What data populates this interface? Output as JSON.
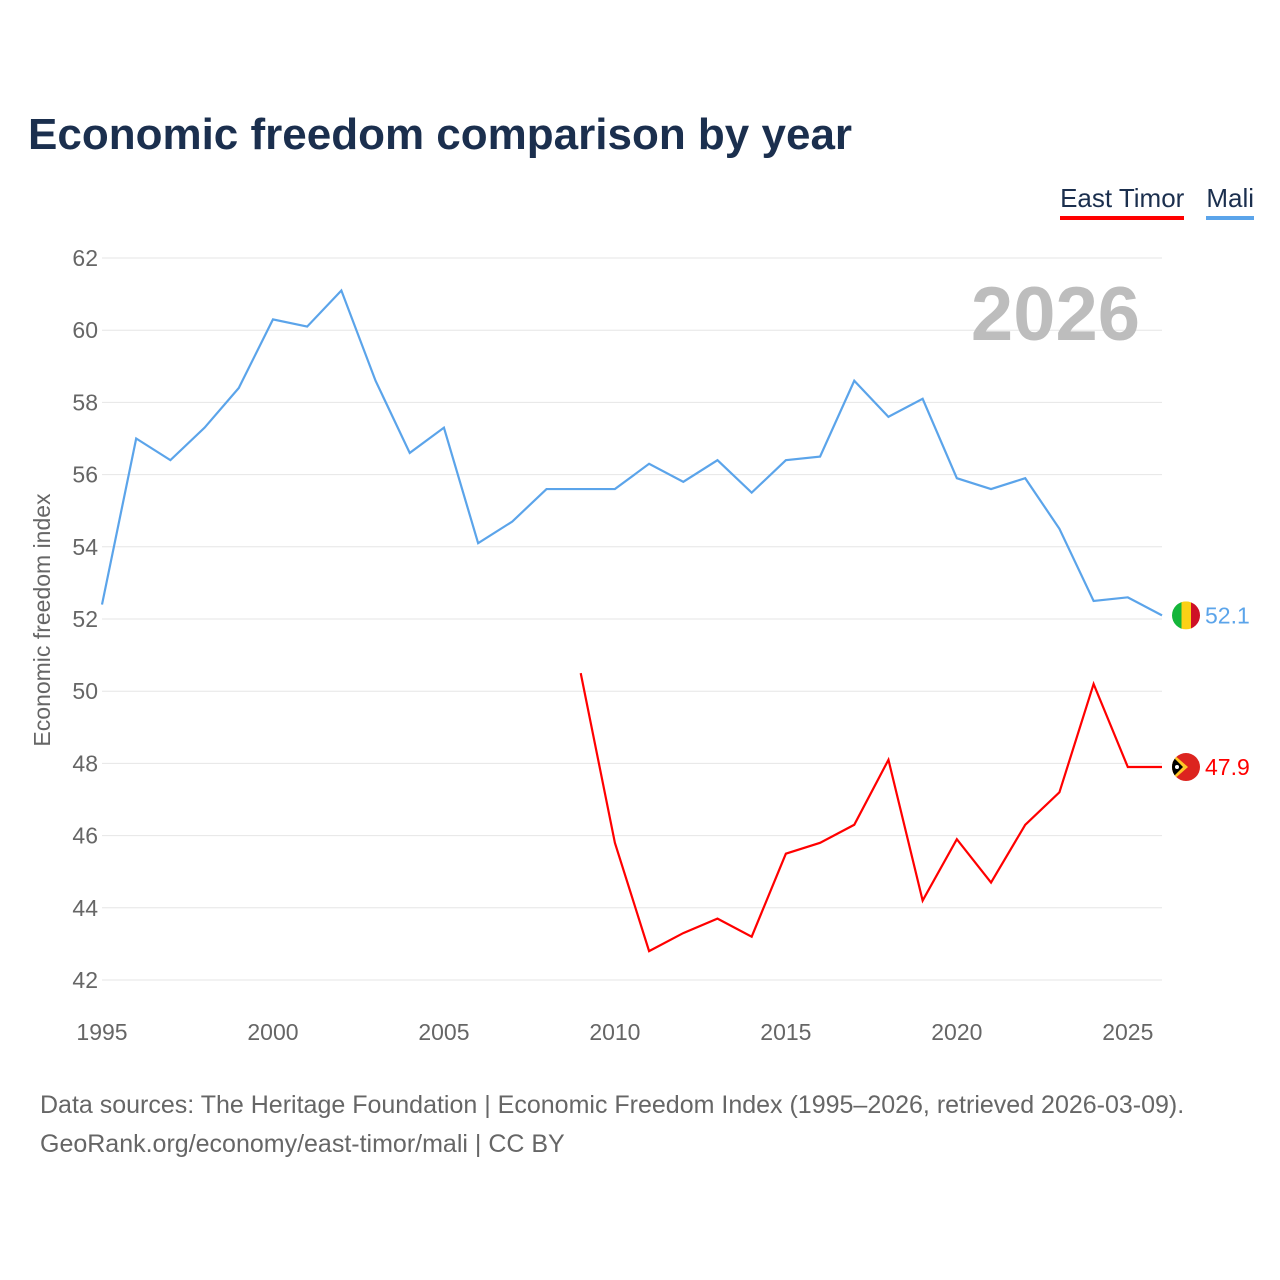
{
  "chart_data": {
    "type": "line",
    "title": "Economic freedom comparison by year",
    "xlabel": "",
    "ylabel": "Economic freedom index",
    "xlim": [
      1995,
      2026
    ],
    "ylim": [
      42,
      62
    ],
    "xticks": [
      1995,
      2000,
      2005,
      2010,
      2015,
      2020,
      2025
    ],
    "yticks": [
      42,
      44,
      46,
      48,
      50,
      52,
      54,
      56,
      58,
      60,
      62
    ],
    "grid": true,
    "legend_position": "top-right",
    "year_watermark": "2026",
    "series": [
      {
        "name": "East Timor",
        "color": "#ff0000",
        "end_label": "47.9",
        "x": [
          2009,
          2010,
          2011,
          2012,
          2013,
          2014,
          2015,
          2016,
          2017,
          2018,
          2019,
          2020,
          2021,
          2022,
          2023,
          2024,
          2025,
          2026
        ],
        "values": [
          50.5,
          45.8,
          42.8,
          43.3,
          43.7,
          43.2,
          45.5,
          45.8,
          46.3,
          48.1,
          44.2,
          45.9,
          44.7,
          46.3,
          47.2,
          50.2,
          47.9,
          47.9
        ]
      },
      {
        "name": "Mali",
        "color": "#5ba4ea",
        "end_label": "52.1",
        "x": [
          1995,
          1996,
          1997,
          1998,
          1999,
          2000,
          2001,
          2002,
          2003,
          2004,
          2005,
          2006,
          2007,
          2008,
          2009,
          2010,
          2011,
          2012,
          2013,
          2014,
          2015,
          2016,
          2017,
          2018,
          2019,
          2020,
          2021,
          2022,
          2023,
          2024,
          2025,
          2026
        ],
        "values": [
          52.4,
          57.0,
          56.4,
          57.3,
          58.4,
          60.3,
          60.1,
          61.1,
          58.6,
          56.6,
          57.3,
          54.1,
          54.7,
          55.6,
          55.6,
          55.6,
          56.3,
          55.8,
          56.4,
          55.5,
          56.4,
          56.5,
          58.6,
          57.6,
          58.1,
          55.9,
          55.6,
          55.9,
          54.5,
          52.5,
          52.6,
          52.1
        ]
      }
    ]
  },
  "footer": {
    "line1": "Data sources: The Heritage Foundation | Economic Freedom Index (1995–2026, retrieved 2026-03-09).",
    "line2": "GeoRank.org/economy/east-timor/mali | CC BY"
  }
}
